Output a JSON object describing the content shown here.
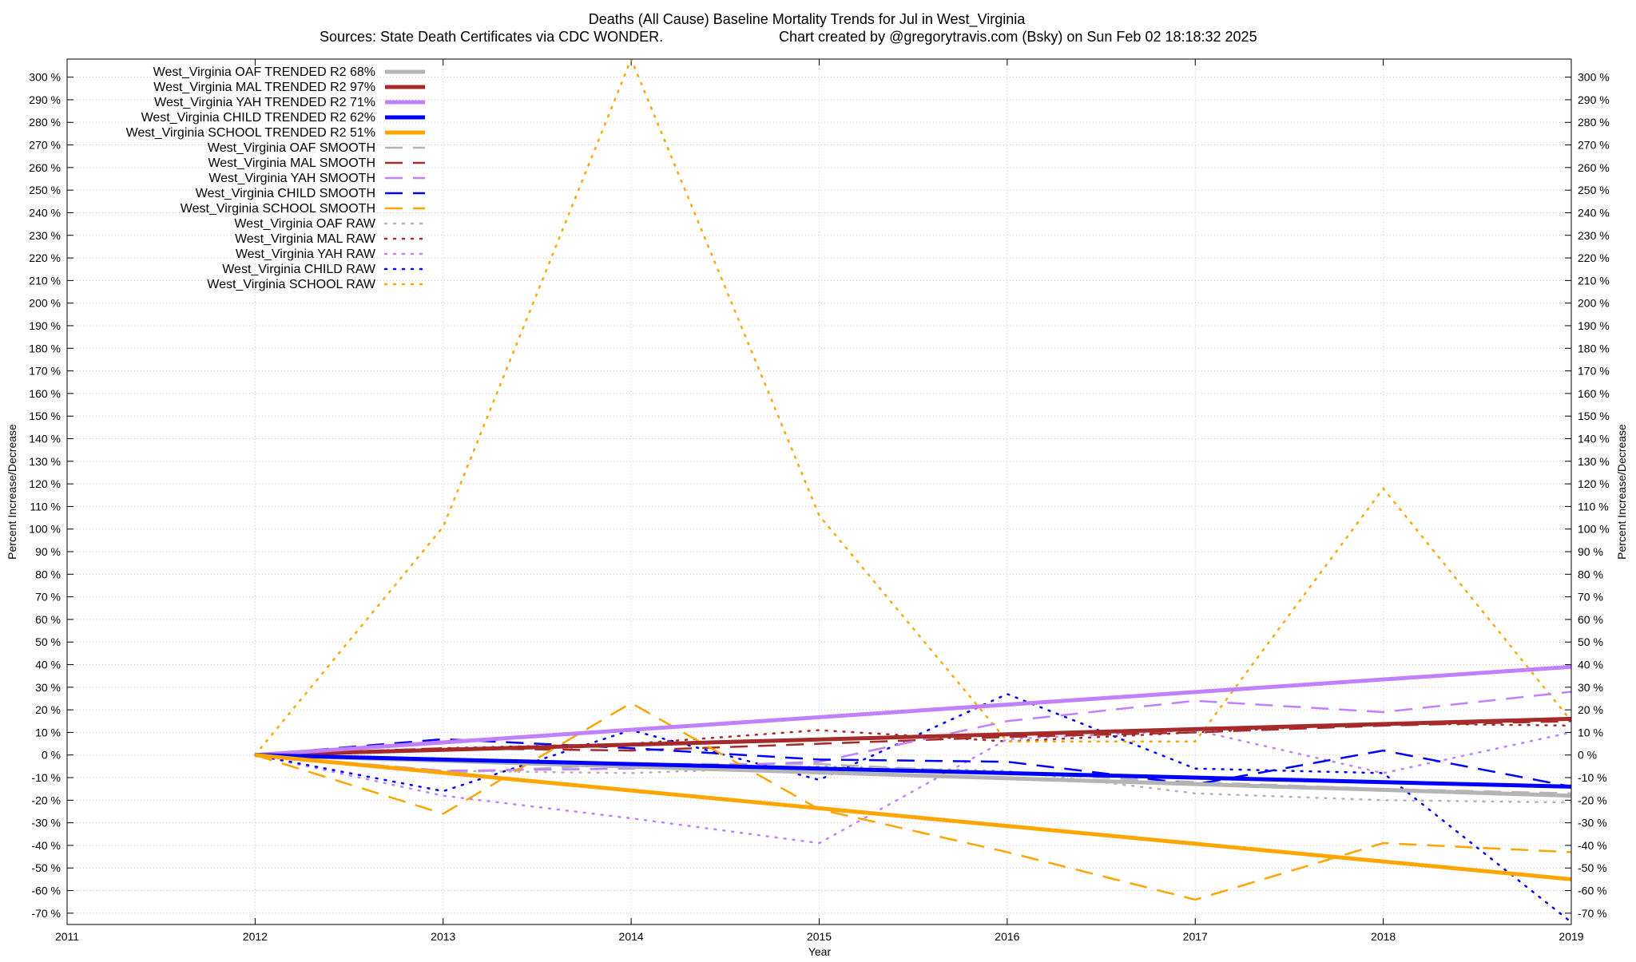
{
  "chart_data": {
    "type": "line",
    "title": "Deaths (All Cause)  Baseline Mortality Trends for Jul in West_Virginia",
    "subtitle_left": "Sources: State Death Certificates via CDC WONDER.",
    "subtitle_right": "Chart created by @gregorytravis.com (Bsky) on Sun Feb 02 18:18:32 2025",
    "xlabel": "Year",
    "ylabel": "Percent Increase/Decrease",
    "y2label": "Percent Increase/Decrease",
    "xlim": [
      2011,
      2019
    ],
    "ylim": [
      -75,
      308
    ],
    "x_ticks": [
      "2011",
      "2012",
      "2013",
      "2014",
      "2015",
      "2016",
      "2017",
      "2018",
      "2019"
    ],
    "y_ticks": [
      "300 %",
      "290 %",
      "280 %",
      "270 %",
      "260 %",
      "250 %",
      "240 %",
      "230 %",
      "220 %",
      "210 %",
      "200 %",
      "190 %",
      "180 %",
      "170 %",
      "160 %",
      "150 %",
      "140 %",
      "130 %",
      "120 %",
      "110 %",
      "100 %",
      "90 %",
      "80 %",
      "70 %",
      "60 %",
      "50 %",
      "40 %",
      "30 %",
      "20 %",
      "10 %",
      "0 %",
      "-10 %",
      "-20 %",
      "-30 %",
      "-40 %",
      "-50 %",
      "-60 %",
      "-70 %"
    ],
    "grid": true,
    "legend_position": "top-left",
    "series": [
      {
        "name": "West_Virginia OAF TRENDED R2  68%",
        "style": "solid",
        "color": "#b4b4b4",
        "x": [
          2012,
          2019
        ],
        "y": [
          0,
          -18
        ]
      },
      {
        "name": "West_Virginia MAL TRENDED R2  97%",
        "style": "solid",
        "color": "#a52a2a",
        "x": [
          2012,
          2019
        ],
        "y": [
          0,
          16
        ]
      },
      {
        "name": "West_Virginia YAH TRENDED R2  71%",
        "style": "solid",
        "color": "#c080ff",
        "x": [
          2012,
          2019
        ],
        "y": [
          0,
          39
        ]
      },
      {
        "name": "West_Virginia CHILD TRENDED R2  62%",
        "style": "solid",
        "color": "#0000ff",
        "x": [
          2012,
          2019
        ],
        "y": [
          0,
          -14
        ]
      },
      {
        "name": "West_Virginia SCHOOL TRENDED R2  51%",
        "style": "solid",
        "color": "#ffa500",
        "x": [
          2012,
          2019
        ],
        "y": [
          0,
          -55
        ]
      },
      {
        "name": "West_Virginia OAF SMOOTH",
        "style": "dashed",
        "color": "#b4b4b4",
        "x": [
          2012,
          2013,
          2014,
          2015,
          2016,
          2017,
          2018,
          2019
        ],
        "y": [
          0,
          -8,
          -4,
          -4,
          -8,
          -12,
          -15,
          -17
        ]
      },
      {
        "name": "West_Virginia MAL SMOOTH",
        "style": "dashed",
        "color": "#a52a2a",
        "x": [
          2012,
          2013,
          2014,
          2015,
          2016,
          2017,
          2018,
          2019
        ],
        "y": [
          0,
          3,
          2,
          5,
          8,
          10,
          13,
          15
        ]
      },
      {
        "name": "West_Virginia YAH SMOOTH",
        "style": "dashed",
        "color": "#c080ff",
        "x": [
          2012,
          2013,
          2014,
          2015,
          2016,
          2017,
          2018,
          2019
        ],
        "y": [
          0,
          -7,
          -6,
          -3,
          15,
          24,
          19,
          28
        ]
      },
      {
        "name": "West_Virginia CHILD SMOOTH",
        "style": "dashed",
        "color": "#0000ff",
        "x": [
          2012,
          2013,
          2014,
          2015,
          2016,
          2017,
          2018,
          2019
        ],
        "y": [
          0,
          7,
          3,
          -2,
          -3,
          -13,
          2,
          -14
        ]
      },
      {
        "name": "West_Virginia SCHOOL SMOOTH",
        "style": "dashed",
        "color": "#ffa500",
        "x": [
          2012,
          2013,
          2014,
          2015,
          2016,
          2017,
          2018,
          2019
        ],
        "y": [
          0,
          -26,
          23,
          -24,
          -43,
          -64,
          -39,
          -43
        ]
      },
      {
        "name": "West_Virginia OAF RAW",
        "style": "dotted",
        "color": "#b4b4b4",
        "x": [
          2012,
          2013,
          2014,
          2015,
          2016,
          2017,
          2018,
          2019
        ],
        "y": [
          0,
          -7,
          -8,
          -5,
          -7,
          -17,
          -20,
          -21
        ]
      },
      {
        "name": "West_Virginia MAL RAW",
        "style": "dotted",
        "color": "#a52a2a",
        "x": [
          2012,
          2013,
          2014,
          2015,
          2016,
          2017,
          2018,
          2019
        ],
        "y": [
          0,
          3,
          5,
          11,
          6,
          10,
          14,
          13
        ]
      },
      {
        "name": "West_Virginia YAH RAW",
        "style": "dotted",
        "color": "#c080ff",
        "x": [
          2012,
          2013,
          2014,
          2015,
          2016,
          2017,
          2018,
          2019
        ],
        "y": [
          0,
          -18,
          -28,
          -39,
          7,
          11,
          -8,
          10
        ]
      },
      {
        "name": "West_Virginia CHILD RAW",
        "style": "dotted",
        "color": "#0000ff",
        "x": [
          2012,
          2013,
          2014,
          2015,
          2016,
          2017,
          2018,
          2019
        ],
        "y": [
          0,
          -16,
          11,
          -11,
          27,
          -6,
          -8,
          -74
        ]
      },
      {
        "name": "West_Virginia SCHOOL RAW",
        "style": "dotted",
        "color": "#ffa500",
        "x": [
          2012,
          2013,
          2014,
          2015,
          2016,
          2017,
          2018,
          2019
        ],
        "y": [
          0,
          101,
          308,
          106,
          6,
          6,
          118,
          15
        ]
      }
    ]
  }
}
